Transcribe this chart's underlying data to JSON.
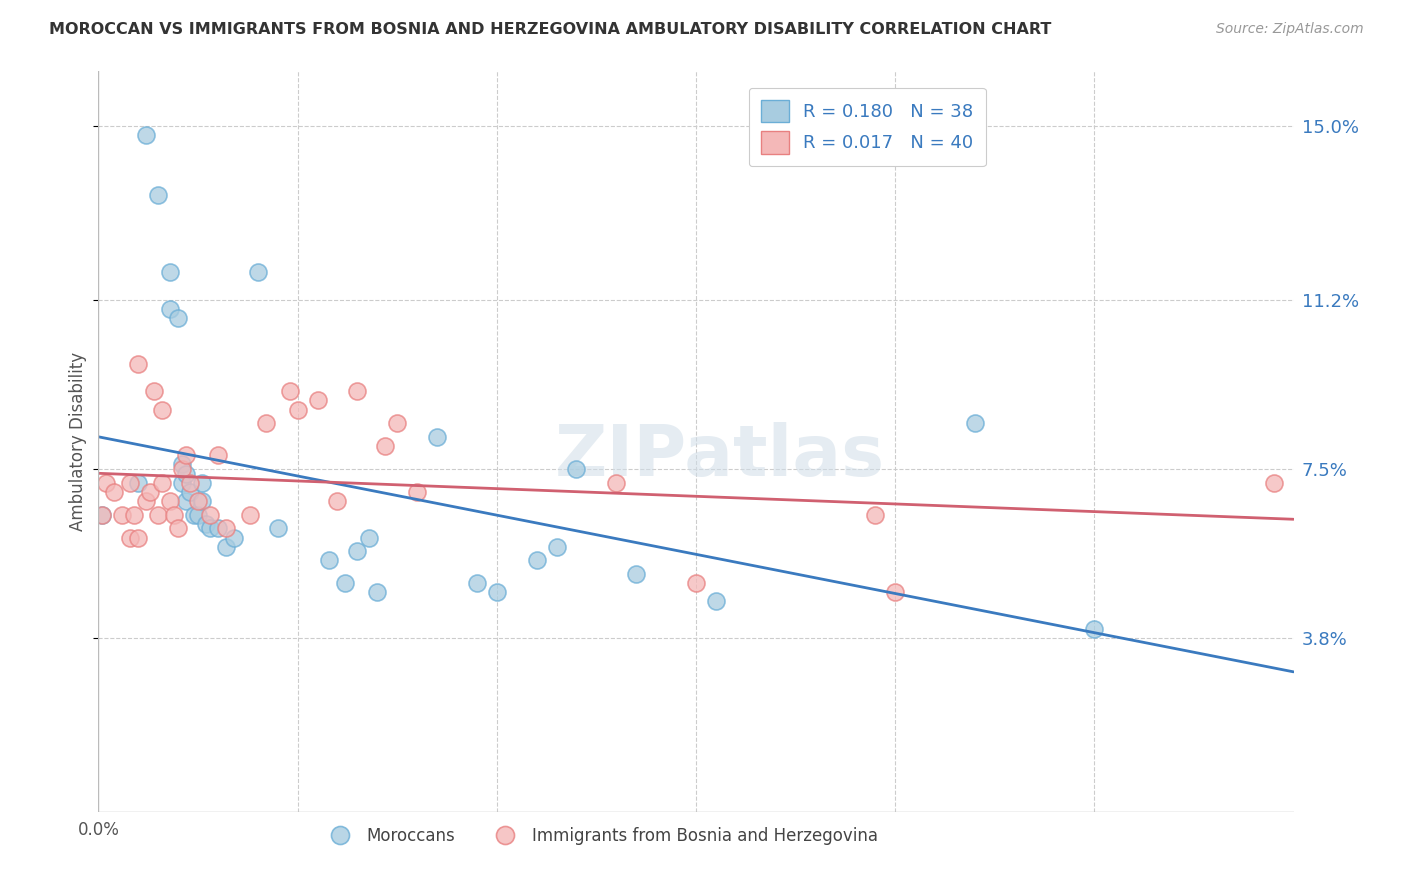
{
  "title": "MOROCCAN VS IMMIGRANTS FROM BOSNIA AND HERZEGOVINA AMBULATORY DISABILITY CORRELATION CHART",
  "source": "Source: ZipAtlas.com",
  "ylabel": "Ambulatory Disability",
  "ytick_vals": [
    0.038,
    0.075,
    0.112,
    0.15
  ],
  "ytick_labels": [
    "3.8%",
    "7.5%",
    "11.2%",
    "15.0%"
  ],
  "xlim": [
    0.0,
    0.3
  ],
  "ylim": [
    0.0,
    0.162
  ],
  "legend_r1": "R = 0.180",
  "legend_n1": "N = 38",
  "legend_r2": "R = 0.017",
  "legend_n2": "N = 40",
  "blue_marker_color": "#a8cce0",
  "blue_edge_color": "#6baed6",
  "pink_marker_color": "#f4b8b8",
  "pink_edge_color": "#e88080",
  "blue_line_color": "#3a7abf",
  "pink_line_color": "#d06070",
  "watermark": "ZIPatlas",
  "grid_color": "#cccccc",
  "moroccan_x": [
    0.001,
    0.012,
    0.015,
    0.018,
    0.018,
    0.02,
    0.021,
    0.021,
    0.022,
    0.022,
    0.023,
    0.024,
    0.025,
    0.026,
    0.026,
    0.027,
    0.028,
    0.03,
    0.032,
    0.034,
    0.045,
    0.058,
    0.062,
    0.065,
    0.068,
    0.07,
    0.085,
    0.095,
    0.1,
    0.11,
    0.115,
    0.12,
    0.135,
    0.155,
    0.22,
    0.25,
    0.01,
    0.04
  ],
  "moroccan_y": [
    0.065,
    0.148,
    0.135,
    0.118,
    0.11,
    0.108,
    0.072,
    0.076,
    0.068,
    0.074,
    0.07,
    0.065,
    0.065,
    0.072,
    0.068,
    0.063,
    0.062,
    0.062,
    0.058,
    0.06,
    0.062,
    0.055,
    0.05,
    0.057,
    0.06,
    0.048,
    0.082,
    0.05,
    0.048,
    0.055,
    0.058,
    0.075,
    0.052,
    0.046,
    0.085,
    0.04,
    0.072,
    0.118
  ],
  "bosnia_x": [
    0.001,
    0.002,
    0.004,
    0.006,
    0.008,
    0.008,
    0.009,
    0.01,
    0.012,
    0.013,
    0.015,
    0.016,
    0.018,
    0.019,
    0.02,
    0.021,
    0.022,
    0.023,
    0.025,
    0.028,
    0.03,
    0.032,
    0.038,
    0.042,
    0.048,
    0.05,
    0.055,
    0.06,
    0.065,
    0.072,
    0.075,
    0.08,
    0.13,
    0.15,
    0.195,
    0.2,
    0.295,
    0.01,
    0.014,
    0.016
  ],
  "bosnia_y": [
    0.065,
    0.072,
    0.07,
    0.065,
    0.06,
    0.072,
    0.065,
    0.06,
    0.068,
    0.07,
    0.065,
    0.072,
    0.068,
    0.065,
    0.062,
    0.075,
    0.078,
    0.072,
    0.068,
    0.065,
    0.078,
    0.062,
    0.065,
    0.085,
    0.092,
    0.088,
    0.09,
    0.068,
    0.092,
    0.08,
    0.085,
    0.07,
    0.072,
    0.05,
    0.065,
    0.048,
    0.072,
    0.098,
    0.092,
    0.088
  ]
}
